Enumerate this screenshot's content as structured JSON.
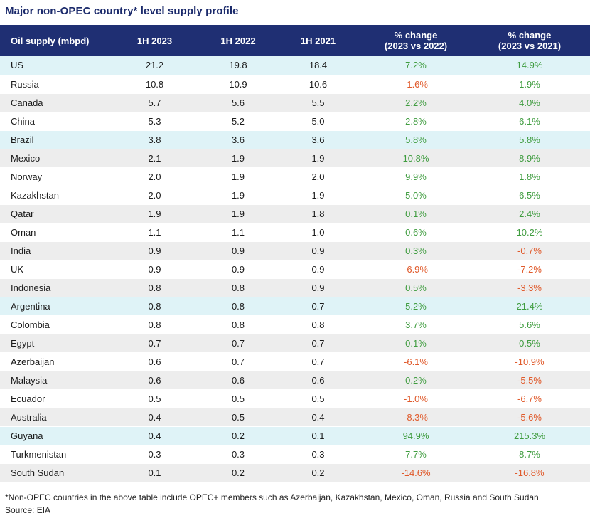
{
  "title": "Major non-OPEC country* level supply profile",
  "table": {
    "headers": [
      "Oil supply (mbpd)",
      "1H 2023",
      "1H 2022",
      "1H 2021",
      "% change\n(2023 vs 2022)",
      "% change\n(2023 vs 2021)"
    ],
    "rows": [
      {
        "country": "US",
        "h2023": "21.2",
        "h2022": "19.8",
        "h2021": "18.4",
        "chg22": "7.2%",
        "chg21": "14.9%",
        "shade": "blue"
      },
      {
        "country": "Russia",
        "h2023": "10.8",
        "h2022": "10.9",
        "h2021": "10.6",
        "chg22": "-1.6%",
        "chg21": "1.9%",
        "shade": "none"
      },
      {
        "country": "Canada",
        "h2023": "5.7",
        "h2022": "5.6",
        "h2021": "5.5",
        "chg22": "2.2%",
        "chg21": "4.0%",
        "shade": "grey"
      },
      {
        "country": "China",
        "h2023": "5.3",
        "h2022": "5.2",
        "h2021": "5.0",
        "chg22": "2.8%",
        "chg21": "6.1%",
        "shade": "none"
      },
      {
        "country": "Brazil",
        "h2023": "3.8",
        "h2022": "3.6",
        "h2021": "3.6",
        "chg22": "5.8%",
        "chg21": "5.8%",
        "shade": "blue"
      },
      {
        "country": "Mexico",
        "h2023": "2.1",
        "h2022": "1.9",
        "h2021": "1.9",
        "chg22": "10.8%",
        "chg21": "8.9%",
        "shade": "grey"
      },
      {
        "country": "Norway",
        "h2023": "2.0",
        "h2022": "1.9",
        "h2021": "2.0",
        "chg22": "9.9%",
        "chg21": "1.8%",
        "shade": "none"
      },
      {
        "country": "Kazakhstan",
        "h2023": "2.0",
        "h2022": "1.9",
        "h2021": "1.9",
        "chg22": "5.0%",
        "chg21": "6.5%",
        "shade": "none"
      },
      {
        "country": "Qatar",
        "h2023": "1.9",
        "h2022": "1.9",
        "h2021": "1.8",
        "chg22": "0.1%",
        "chg21": "2.4%",
        "shade": "grey"
      },
      {
        "country": "Oman",
        "h2023": "1.1",
        "h2022": "1.1",
        "h2021": "1.0",
        "chg22": "0.6%",
        "chg21": "10.2%",
        "shade": "none"
      },
      {
        "country": "India",
        "h2023": "0.9",
        "h2022": "0.9",
        "h2021": "0.9",
        "chg22": "0.3%",
        "chg21": "-0.7%",
        "shade": "grey"
      },
      {
        "country": "UK",
        "h2023": "0.9",
        "h2022": "0.9",
        "h2021": "0.9",
        "chg22": "-6.9%",
        "chg21": "-7.2%",
        "shade": "none"
      },
      {
        "country": "Indonesia",
        "h2023": "0.8",
        "h2022": "0.8",
        "h2021": "0.9",
        "chg22": "0.5%",
        "chg21": "-3.3%",
        "shade": "grey"
      },
      {
        "country": "Argentina",
        "h2023": "0.8",
        "h2022": "0.8",
        "h2021": "0.7",
        "chg22": "5.2%",
        "chg21": "21.4%",
        "shade": "blue"
      },
      {
        "country": "Colombia",
        "h2023": "0.8",
        "h2022": "0.8",
        "h2021": "0.8",
        "chg22": "3.7%",
        "chg21": "5.6%",
        "shade": "none"
      },
      {
        "country": "Egypt",
        "h2023": "0.7",
        "h2022": "0.7",
        "h2021": "0.7",
        "chg22": "0.1%",
        "chg21": "0.5%",
        "shade": "grey"
      },
      {
        "country": "Azerbaijan",
        "h2023": "0.6",
        "h2022": "0.7",
        "h2021": "0.7",
        "chg22": "-6.1%",
        "chg21": "-10.9%",
        "shade": "none"
      },
      {
        "country": "Malaysia",
        "h2023": "0.6",
        "h2022": "0.6",
        "h2021": "0.6",
        "chg22": "0.2%",
        "chg21": "-5.5%",
        "shade": "grey"
      },
      {
        "country": "Ecuador",
        "h2023": "0.5",
        "h2022": "0.5",
        "h2021": "0.5",
        "chg22": "-1.0%",
        "chg21": "-6.7%",
        "shade": "none"
      },
      {
        "country": "Australia",
        "h2023": "0.4",
        "h2022": "0.5",
        "h2021": "0.4",
        "chg22": "-8.3%",
        "chg21": "-5.6%",
        "shade": "grey"
      },
      {
        "country": "Guyana",
        "h2023": "0.4",
        "h2022": "0.2",
        "h2021": "0.1",
        "chg22": "94.9%",
        "chg21": "215.3%",
        "shade": "blue"
      },
      {
        "country": "Turkmenistan",
        "h2023": "0.3",
        "h2022": "0.3",
        "h2021": "0.3",
        "chg22": "7.7%",
        "chg21": "8.7%",
        "shade": "none"
      },
      {
        "country": "South Sudan",
        "h2023": "0.1",
        "h2022": "0.2",
        "h2021": "0.2",
        "chg22": "-14.6%",
        "chg21": "-16.8%",
        "shade": "grey"
      }
    ]
  },
  "footnote": "*Non-OPEC countries in the above table include OPEC+ members such as Azerbaijan, Kazakhstan, Mexico, Oman, Russia and South Sudan",
  "source": "Source: EIA",
  "colors": {
    "header_bg": "#1f2f73",
    "title": "#1b2a6b",
    "positive": "#3f9c3f",
    "negative": "#e05a2b",
    "row_blue": "#dff3f7",
    "row_grey": "#ededed"
  }
}
